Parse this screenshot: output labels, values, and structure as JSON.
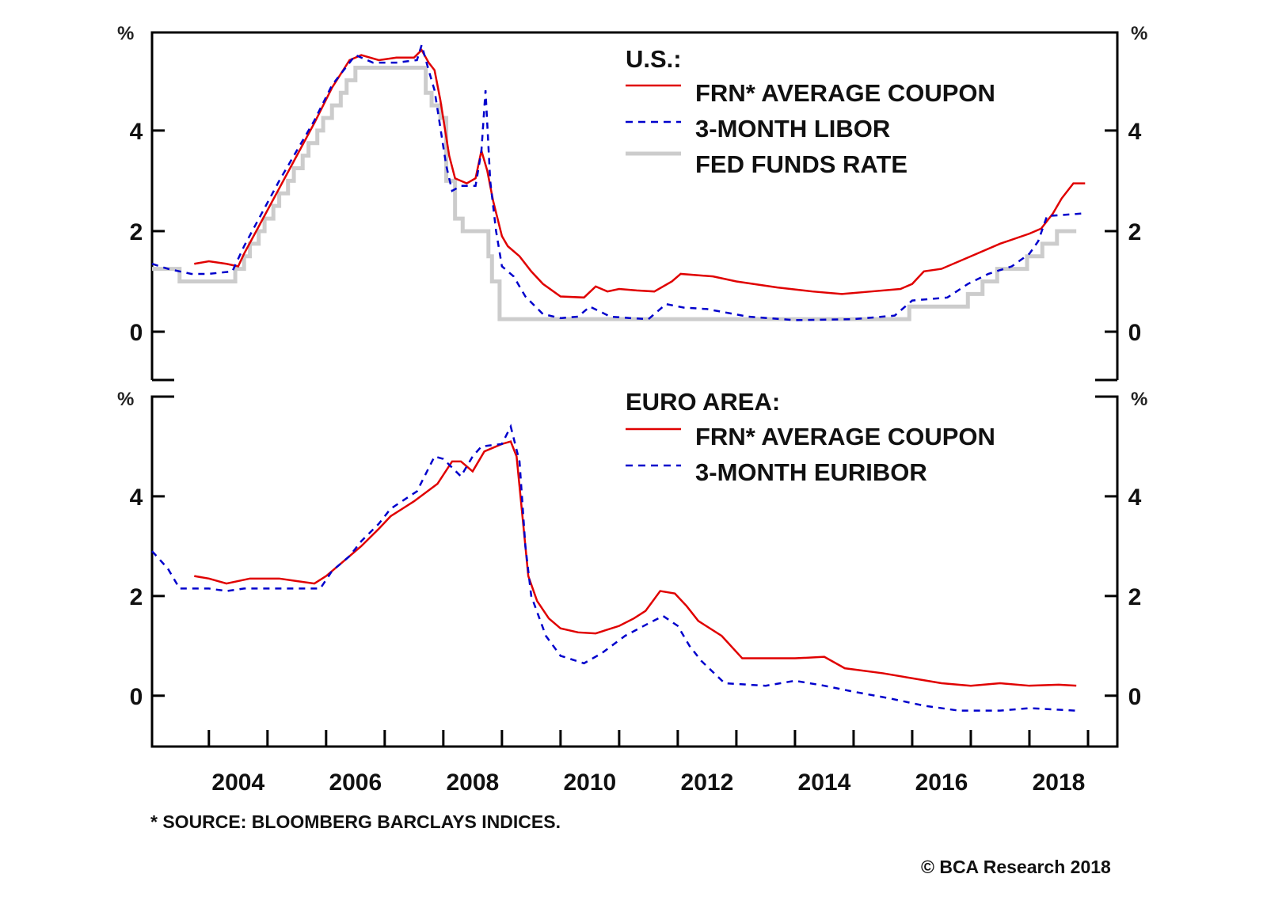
{
  "chart_data": [
    {
      "type": "line",
      "panel": "top",
      "title": "U.S.:",
      "ylabel": "%",
      "ylim": [
        -0.96,
        5.95
      ],
      "yticks": [
        0,
        2,
        4
      ],
      "xlim": [
        2003.03,
        2019.5
      ],
      "xticks": [
        2004,
        2006,
        2008,
        2010,
        2012,
        2014,
        2016,
        2018
      ],
      "legend_position": "top-right",
      "series": [
        {
          "name": "FRN* AVERAGE COUPON",
          "color": "#e00000",
          "style": "solid",
          "x": [
            2003.75,
            2004.0,
            2004.3,
            2004.5,
            2004.6,
            2004.9,
            2005.2,
            2005.5,
            2005.8,
            2006.1,
            2006.4,
            2006.6,
            2006.9,
            2007.2,
            2007.5,
            2007.63,
            2007.75,
            2007.85,
            2007.95,
            2008.1,
            2008.2,
            2008.4,
            2008.55,
            2008.65,
            2008.75,
            2008.85,
            2009.0,
            2009.1,
            2009.3,
            2009.5,
            2009.7,
            2010.0,
            2010.4,
            2010.6,
            2010.8,
            2011.0,
            2011.3,
            2011.6,
            2011.9,
            2012.05,
            2012.6,
            2013.0,
            2013.7,
            2014.3,
            2014.8,
            2015.3,
            2015.8,
            2016.0,
            2016.2,
            2016.5,
            2017.0,
            2017.5,
            2018.0,
            2018.2,
            2018.4,
            2018.55,
            2018.75,
            2018.95
          ],
          "values": [
            1.35,
            1.4,
            1.35,
            1.3,
            1.55,
            2.2,
            2.85,
            3.5,
            4.15,
            4.85,
            5.4,
            5.5,
            5.4,
            5.45,
            5.45,
            5.6,
            5.35,
            5.2,
            4.6,
            3.5,
            3.05,
            2.95,
            3.05,
            3.6,
            3.2,
            2.6,
            1.9,
            1.7,
            1.5,
            1.2,
            0.95,
            0.7,
            0.68,
            0.9,
            0.8,
            0.85,
            0.82,
            0.8,
            1.0,
            1.15,
            1.1,
            1.0,
            0.88,
            0.8,
            0.75,
            0.8,
            0.85,
            0.95,
            1.2,
            1.25,
            1.5,
            1.75,
            1.95,
            2.05,
            2.35,
            2.65,
            2.95,
            2.95
          ]
        },
        {
          "name": "3-MONTH LIBOR",
          "color": "#0000cc",
          "style": "dashed",
          "x": [
            2003.03,
            2003.3,
            2003.7,
            2004.0,
            2004.4,
            2004.6,
            2004.9,
            2005.2,
            2005.5,
            2005.8,
            2006.1,
            2006.5,
            2006.8,
            2007.2,
            2007.55,
            2007.63,
            2007.75,
            2007.85,
            2008.05,
            2008.15,
            2008.3,
            2008.55,
            2008.65,
            2008.72,
            2008.8,
            2008.9,
            2009.0,
            2009.2,
            2009.4,
            2009.7,
            2010.0,
            2010.3,
            2010.5,
            2010.85,
            2011.2,
            2011.5,
            2011.8,
            2012.1,
            2012.5,
            2013.2,
            2014.0,
            2015.0,
            2015.7,
            2016.0,
            2016.6,
            2016.95,
            2017.3,
            2017.7,
            2018.0,
            2018.15,
            2018.3,
            2018.9
          ],
          "values": [
            1.35,
            1.25,
            1.15,
            1.15,
            1.2,
            1.7,
            2.35,
            3.0,
            3.6,
            4.2,
            4.9,
            5.5,
            5.35,
            5.35,
            5.4,
            5.7,
            5.2,
            4.8,
            3.3,
            2.8,
            2.9,
            2.9,
            3.6,
            4.8,
            3.0,
            2.0,
            1.3,
            1.1,
            0.7,
            0.35,
            0.27,
            0.3,
            0.5,
            0.3,
            0.27,
            0.25,
            0.55,
            0.48,
            0.45,
            0.3,
            0.23,
            0.25,
            0.32,
            0.62,
            0.68,
            0.95,
            1.15,
            1.3,
            1.55,
            1.8,
            2.3,
            2.35
          ]
        },
        {
          "name": "FED FUNDS RATE",
          "color": "#cccccc",
          "style": "step",
          "x": [
            2003.03,
            2003.5,
            2004.45,
            2004.6,
            2004.7,
            2004.85,
            2004.95,
            2005.1,
            2005.2,
            2005.35,
            2005.45,
            2005.6,
            2005.7,
            2005.85,
            2005.95,
            2006.1,
            2006.25,
            2006.35,
            2006.5,
            2007.7,
            2007.8,
            2007.95,
            2008.05,
            2008.2,
            2008.33,
            2008.77,
            2008.83,
            2008.96,
            2015.95,
            2016.95,
            2017.2,
            2017.45,
            2017.96,
            2018.22,
            2018.47,
            2018.8
          ],
          "values": [
            1.25,
            1.0,
            1.25,
            1.5,
            1.75,
            2.0,
            2.25,
            2.5,
            2.75,
            3.0,
            3.25,
            3.5,
            3.75,
            4.0,
            4.25,
            4.5,
            4.75,
            5.0,
            5.25,
            4.75,
            4.5,
            4.25,
            3.0,
            2.25,
            2.0,
            1.5,
            1.0,
            0.25,
            0.5,
            0.75,
            1.0,
            1.25,
            1.5,
            1.75,
            2.0,
            2.0
          ]
        }
      ]
    },
    {
      "type": "line",
      "panel": "bottom",
      "title": "EURO AREA:",
      "ylabel": "%",
      "ylim": [
        -1.02,
        6.0
      ],
      "yticks": [
        0,
        2,
        4
      ],
      "xlim": [
        2003.03,
        2019.5
      ],
      "xticks": [
        2004,
        2006,
        2008,
        2010,
        2012,
        2014,
        2016,
        2018
      ],
      "legend_position": "top-right",
      "series": [
        {
          "name": "FRN* AVERAGE COUPON",
          "color": "#e00000",
          "style": "solid",
          "x": [
            2003.75,
            2004.0,
            2004.3,
            2004.7,
            2005.2,
            2005.5,
            2005.8,
            2006.0,
            2006.3,
            2006.6,
            2006.9,
            2007.1,
            2007.5,
            2007.9,
            2008.15,
            2008.3,
            2008.5,
            2008.7,
            2009.0,
            2009.15,
            2009.25,
            2009.35,
            2009.45,
            2009.6,
            2009.8,
            2010.0,
            2010.3,
            2010.6,
            2011.0,
            2011.25,
            2011.45,
            2011.7,
            2011.95,
            2012.15,
            2012.35,
            2012.75,
            2013.1,
            2013.5,
            2014.0,
            2014.5,
            2014.85,
            2015.5,
            2016.0,
            2016.5,
            2017.0,
            2017.5,
            2018.0,
            2018.5,
            2018.8
          ],
          "values": [
            2.4,
            2.35,
            2.25,
            2.35,
            2.35,
            2.3,
            2.25,
            2.4,
            2.7,
            3.0,
            3.35,
            3.6,
            3.9,
            4.25,
            4.7,
            4.7,
            4.5,
            4.9,
            5.05,
            5.1,
            4.8,
            3.6,
            2.4,
            1.9,
            1.55,
            1.35,
            1.27,
            1.25,
            1.4,
            1.55,
            1.7,
            2.1,
            2.05,
            1.8,
            1.5,
            1.2,
            0.75,
            0.75,
            0.75,
            0.78,
            0.55,
            0.45,
            0.35,
            0.25,
            0.2,
            0.25,
            0.2,
            0.22,
            0.2
          ]
        },
        {
          "name": "3-MONTH EURIBOR",
          "color": "#0000cc",
          "style": "dashed",
          "x": [
            2003.03,
            2003.3,
            2003.5,
            2004.0,
            2004.3,
            2004.6,
            2005.0,
            2005.5,
            2005.9,
            2006.1,
            2006.4,
            2006.6,
            2006.9,
            2007.1,
            2007.55,
            2007.85,
            2008.0,
            2008.3,
            2008.5,
            2008.65,
            2009.0,
            2009.15,
            2009.3,
            2009.4,
            2009.5,
            2009.75,
            2010.0,
            2010.4,
            2010.7,
            2011.1,
            2011.5,
            2011.75,
            2012.0,
            2012.2,
            2012.4,
            2012.8,
            2013.5,
            2014.0,
            2014.5,
            2015.0,
            2015.6,
            2016.2,
            2016.8,
            2017.5,
            2018.0,
            2018.8
          ],
          "values": [
            2.9,
            2.55,
            2.15,
            2.15,
            2.1,
            2.15,
            2.15,
            2.15,
            2.15,
            2.5,
            2.8,
            3.1,
            3.45,
            3.75,
            4.1,
            4.8,
            4.75,
            4.4,
            4.8,
            5.0,
            5.05,
            5.4,
            4.7,
            3.0,
            2.0,
            1.2,
            0.8,
            0.65,
            0.85,
            1.2,
            1.45,
            1.6,
            1.4,
            1.0,
            0.7,
            0.25,
            0.2,
            0.3,
            0.2,
            0.08,
            -0.05,
            -0.2,
            -0.3,
            -0.3,
            -0.25,
            -0.3
          ]
        }
      ]
    }
  ],
  "axis": {
    "pct_symbol": "%",
    "ytick_labels": [
      "0",
      "2",
      "4"
    ],
    "xtick_labels": [
      "2004",
      "2006",
      "2008",
      "2010",
      "2012",
      "2014",
      "2016",
      "2018"
    ]
  },
  "legends": {
    "top": {
      "title": "U.S.:",
      "items": [
        "FRN* AVERAGE COUPON",
        "3-MONTH LIBOR",
        "FED FUNDS RATE"
      ]
    },
    "bottom": {
      "title": "EURO AREA:",
      "items": [
        "FRN* AVERAGE COUPON",
        "3-MONTH EURIBOR"
      ]
    }
  },
  "footnote": "* SOURCE: BLOOMBERG BARCLAYS INDICES.",
  "copyright": "© BCA Research 2018"
}
